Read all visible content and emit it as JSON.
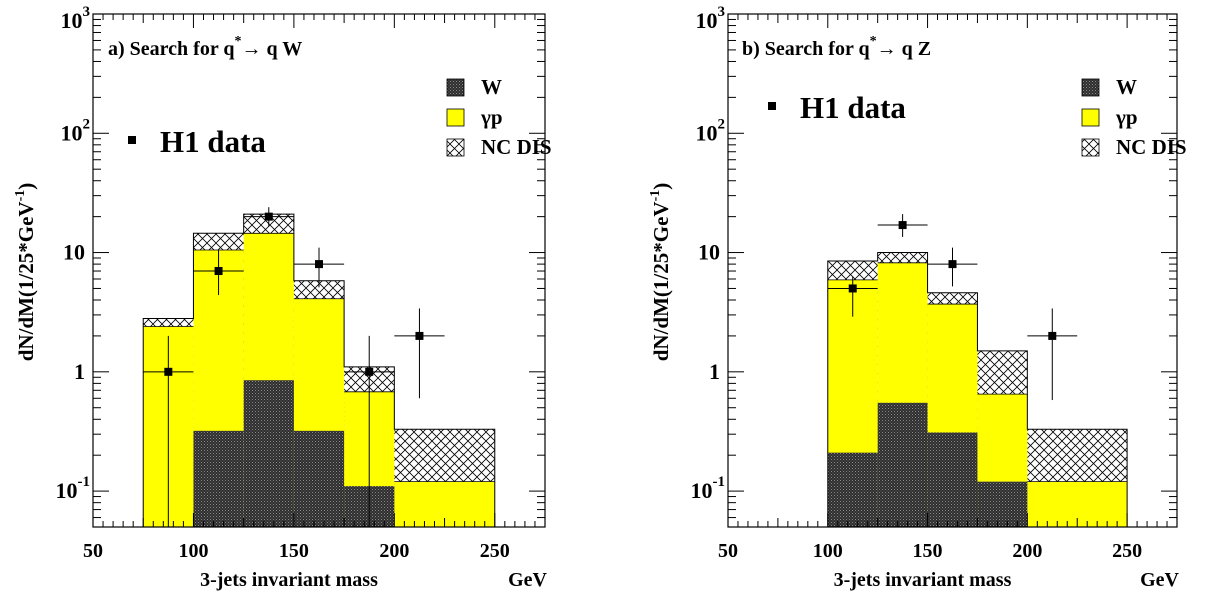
{
  "colors": {
    "w": "#3a3a3a",
    "gp": "#ffff00",
    "nc_fill": "#ffffff",
    "data": "#000000"
  },
  "chart_data": [
    {
      "type": "bar",
      "panel_label": "a)  Search for q",
      "panel_label_sup": "*",
      "panel_label_tail": "→ q W",
      "xlabel": "3-jets invariant mass",
      "xunit": "GeV",
      "ylabel": "dN/dM(1/25*GeV",
      "ylabel_sup": "-1",
      "ylabel_tail": ")",
      "yscale": "log",
      "xlim": [
        50,
        275
      ],
      "ylim": [
        0.05,
        1000
      ],
      "x_ticks": [
        "50",
        "100",
        "150",
        "200",
        "250"
      ],
      "y_ticks": [
        {
          "value": 1000,
          "base": "10",
          "exp": "3"
        },
        {
          "value": 100,
          "base": "10",
          "exp": "2"
        },
        {
          "value": 10,
          "base": "10",
          "exp": ""
        },
        {
          "value": 1,
          "base": "1",
          "exp": ""
        },
        {
          "value": 0.1,
          "base": "10",
          "exp": "-1"
        }
      ],
      "bin_edges": [
        75,
        100,
        125,
        150,
        175,
        200,
        250
      ],
      "stack": [
        {
          "name": "W",
          "values": [
            0,
            0.32,
            0.85,
            0.32,
            0.11,
            0
          ]
        },
        {
          "name": "γp",
          "values": [
            2.4,
            10.5,
            14.5,
            4.1,
            0.68,
            0.12
          ]
        },
        {
          "name": "NC DIS",
          "values": [
            2.8,
            14.5,
            21,
            5.8,
            1.1,
            0.33
          ]
        }
      ],
      "data_series": {
        "name": "H1 data",
        "points": [
          {
            "x": 87.5,
            "y": 1,
            "ylo": 0.05,
            "yhi": 2.0,
            "xlo": 75,
            "xhi": 100
          },
          {
            "x": 112.5,
            "y": 7,
            "ylo": 4.4,
            "yhi": 10.5,
            "xlo": 100,
            "xhi": 125
          },
          {
            "x": 137.5,
            "y": 20,
            "ylo": 16.5,
            "yhi": 24,
            "xlo": 125,
            "xhi": 150
          },
          {
            "x": 162.5,
            "y": 8,
            "ylo": 5.1,
            "yhi": 11,
            "xlo": 150,
            "xhi": 175
          },
          {
            "x": 187.5,
            "y": 1,
            "ylo": 0.05,
            "yhi": 2.0,
            "xlo": 175,
            "xhi": 200
          },
          {
            "x": 212.5,
            "y": 2,
            "ylo": 0.6,
            "yhi": 3.4,
            "xlo": 200,
            "xhi": 225
          }
        ]
      },
      "legend": [
        {
          "key": "w",
          "label": "W"
        },
        {
          "key": "gp",
          "label": "γp"
        },
        {
          "key": "nc",
          "label": "NC DIS"
        }
      ]
    },
    {
      "type": "bar",
      "panel_label": "b)  Search for q",
      "panel_label_sup": "*",
      "panel_label_tail": "→ q Z",
      "xlabel": "3-jets invariant mass",
      "xunit": "GeV",
      "ylabel": "dN/dM(1/25*GeV",
      "ylabel_sup": "-1",
      "ylabel_tail": ")",
      "yscale": "log",
      "xlim": [
        50,
        275
      ],
      "ylim": [
        0.05,
        1000
      ],
      "x_ticks": [
        "50",
        "100",
        "150",
        "200",
        "250"
      ],
      "y_ticks": [
        {
          "value": 1000,
          "base": "10",
          "exp": "3"
        },
        {
          "value": 100,
          "base": "10",
          "exp": "2"
        },
        {
          "value": 10,
          "base": "10",
          "exp": ""
        },
        {
          "value": 1,
          "base": "1",
          "exp": ""
        },
        {
          "value": 0.1,
          "base": "10",
          "exp": "-1"
        }
      ],
      "bin_edges": [
        100,
        125,
        150,
        175,
        200,
        250
      ],
      "stack": [
        {
          "name": "W",
          "values": [
            0.21,
            0.55,
            0.31,
            0.12,
            0
          ]
        },
        {
          "name": "γp",
          "values": [
            5.9,
            8.2,
            3.7,
            0.65,
            0.12
          ]
        },
        {
          "name": "NC DIS",
          "values": [
            8.5,
            10,
            4.6,
            1.5,
            0.33
          ]
        }
      ],
      "data_series": {
        "name": "H1 data",
        "points": [
          {
            "x": 112.5,
            "y": 5,
            "ylo": 2.9,
            "yhi": 6.3,
            "xlo": 100,
            "xhi": 125
          },
          {
            "x": 137.5,
            "y": 17,
            "ylo": 13.5,
            "yhi": 21,
            "xlo": 125,
            "xhi": 150
          },
          {
            "x": 162.5,
            "y": 8,
            "ylo": 5.2,
            "yhi": 11,
            "xlo": 150,
            "xhi": 175
          },
          {
            "x": 212.5,
            "y": 2,
            "ylo": 0.58,
            "yhi": 3.4,
            "xlo": 200,
            "xhi": 225
          }
        ]
      },
      "legend": [
        {
          "key": "w",
          "label": "W"
        },
        {
          "key": "gp",
          "label": "γp"
        },
        {
          "key": "nc",
          "label": "NC DIS"
        }
      ]
    }
  ]
}
